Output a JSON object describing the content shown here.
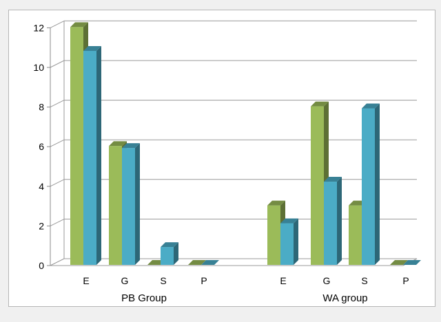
{
  "chart_data": {
    "type": "bar",
    "title": "",
    "xlabel": "",
    "ylabel": "",
    "ylim": [
      0,
      12
    ],
    "yticks": [
      0,
      2,
      4,
      6,
      8,
      10,
      12
    ],
    "grid": true,
    "legend": "none",
    "style": "3d-clustered-column",
    "groups": [
      {
        "label": "PB Group",
        "categories": [
          "E",
          "G",
          "S",
          "P"
        ]
      },
      {
        "label": "WA group",
        "categories": [
          "E",
          "G",
          "S",
          "P"
        ]
      }
    ],
    "series": [
      {
        "color": "#9bbb59",
        "values": [
          12,
          6,
          0,
          0,
          3,
          8,
          3,
          0
        ]
      },
      {
        "color": "#4bacc6",
        "values": [
          10.8,
          5.9,
          0.9,
          0,
          2.1,
          4.2,
          7.9,
          0
        ]
      }
    ]
  }
}
